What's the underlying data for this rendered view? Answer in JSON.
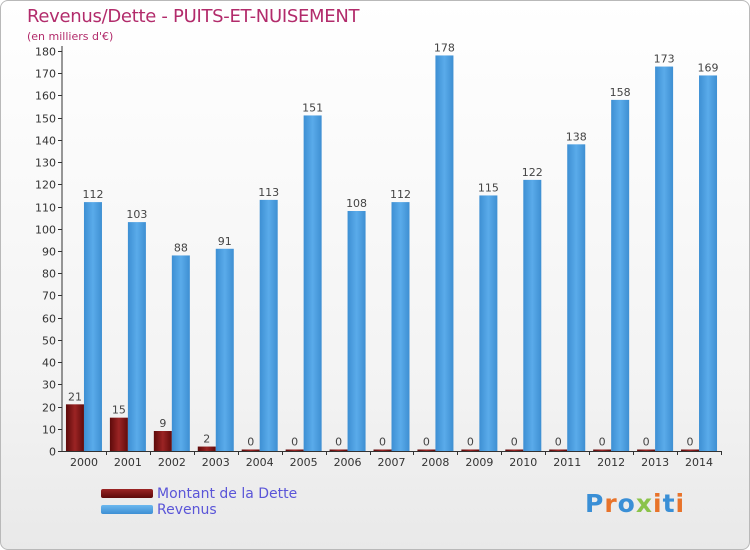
{
  "title": "Revenus/Dette - PUITS-ET-NUISEMENT",
  "subtitle": "(en milliers d'€)",
  "logo_text": "Proxiti",
  "colors": {
    "title": "#b22b6b",
    "debt": "#7a1212",
    "revenue": "#4a9fe0",
    "legend_text": "#5a55d8"
  },
  "chart_data": {
    "type": "bar",
    "categories": [
      "2000",
      "2001",
      "2002",
      "2003",
      "2004",
      "2005",
      "2006",
      "2007",
      "2008",
      "2009",
      "2010",
      "2011",
      "2012",
      "2013",
      "2014"
    ],
    "series": [
      {
        "name": "Montant de la Dette",
        "values": [
          21,
          15,
          9,
          2,
          0,
          0,
          0,
          0,
          0,
          0,
          0,
          0,
          0,
          0,
          0
        ]
      },
      {
        "name": "Revenus",
        "values": [
          112,
          103,
          88,
          91,
          113,
          151,
          108,
          112,
          178,
          115,
          122,
          138,
          158,
          173,
          169
        ]
      }
    ],
    "ylim": [
      0,
      180
    ],
    "ytick_step": 10,
    "grid": false,
    "legend_position": "bottom-left"
  }
}
